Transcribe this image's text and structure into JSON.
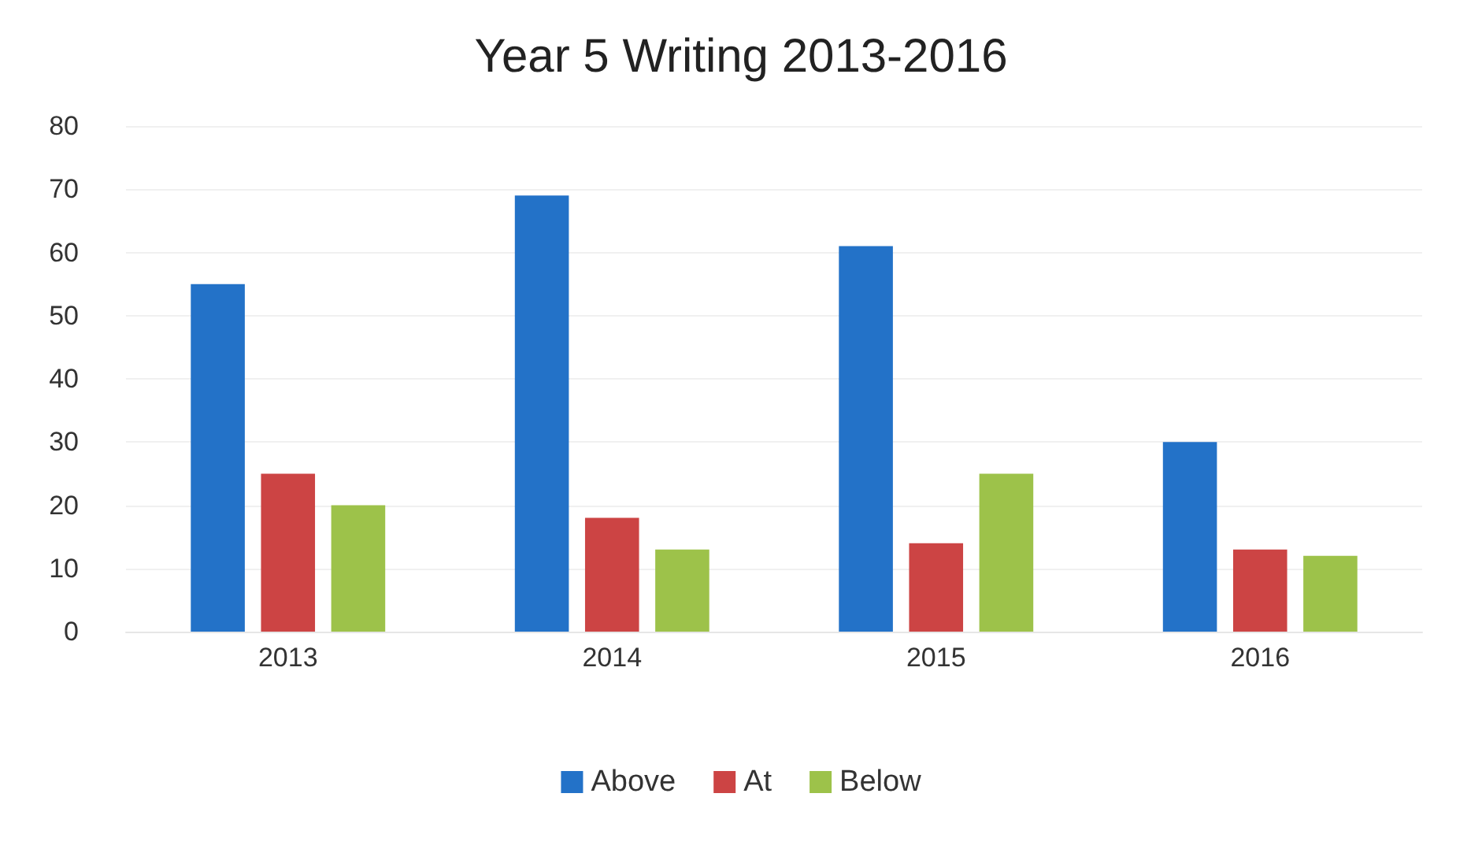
{
  "chart_data": {
    "type": "bar",
    "title": "Year 5 Writing 2013-2016",
    "categories": [
      "2013",
      "2014",
      "2015",
      "2016"
    ],
    "series": [
      {
        "name": "Above",
        "color": "#2372c8",
        "values": [
          55,
          69,
          61,
          30
        ]
      },
      {
        "name": "At",
        "color": "#cc4444",
        "values": [
          25,
          18,
          14,
          13
        ]
      },
      {
        "name": "Below",
        "color": "#9dc24a",
        "values": [
          20,
          13,
          25,
          12
        ]
      }
    ],
    "ylim": [
      0,
      80
    ],
    "yticks": [
      0,
      10,
      20,
      30,
      40,
      50,
      60,
      70,
      80
    ],
    "grid": "y",
    "legend": "bottom"
  }
}
